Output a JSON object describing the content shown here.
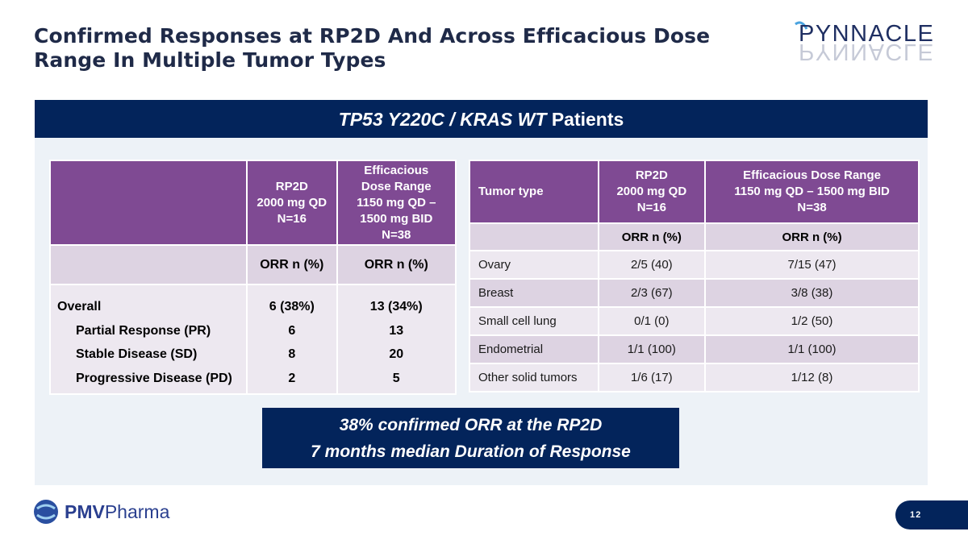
{
  "title": {
    "line1": "Confirmed Responses at RP2D And Across Efficacious Dose",
    "line2": "Range In Multiple Tumor Types"
  },
  "brand": {
    "name": "PYNNACLE"
  },
  "banner": {
    "italic": "TP53 Y220C / KRAS WT",
    "rest": " Patients"
  },
  "table_left": {
    "headers": {
      "rp2d": [
        "RP2D",
        "2000 mg QD",
        "N=16"
      ],
      "efficacious": [
        "Efficacious",
        "Dose Range",
        "1150 mg QD –",
        "1500 mg BID",
        "N=38"
      ]
    },
    "subheaders": [
      "ORR n (%)",
      "ORR n (%)"
    ],
    "rows": [
      {
        "label": "Overall",
        "rp2d": "6 (38%)",
        "eff": "13 (34%)"
      },
      {
        "label": "Partial Response (PR)",
        "rp2d": "6",
        "eff": "13"
      },
      {
        "label": "Stable Disease (SD)",
        "rp2d": "8",
        "eff": "20"
      },
      {
        "label": "Progressive Disease (PD)",
        "rp2d": "2",
        "eff": "5"
      }
    ]
  },
  "table_right": {
    "headers": {
      "tumor": "Tumor type",
      "rp2d": [
        "RP2D",
        "2000 mg QD",
        "N=16"
      ],
      "efficacious": [
        "Efficacious Dose Range",
        "1150 mg QD – 1500 mg BID",
        "N=38"
      ]
    },
    "subheaders": [
      "ORR n (%)",
      "ORR n (%)"
    ],
    "rows": [
      {
        "tumor": "Ovary",
        "rp2d": "2/5 (40)",
        "eff": "7/15 (47)"
      },
      {
        "tumor": "Breast",
        "rp2d": "2/3 (67)",
        "eff": "3/8 (38)"
      },
      {
        "tumor": "Small cell lung",
        "rp2d": "0/1 (0)",
        "eff": "1/2 (50)"
      },
      {
        "tumor": "Endometrial",
        "rp2d": "1/1 (100)",
        "eff": "1/1 (100)"
      },
      {
        "tumor": "Other solid tumors",
        "rp2d": "1/6 (17)",
        "eff": "1/12 (8)"
      }
    ]
  },
  "callout": {
    "line1": "38% confirmed ORR at the RP2D",
    "line2": "7 months median Duration of Response"
  },
  "footer": {
    "company_bold": "PMV",
    "company_rest": "Pharma",
    "page_number": "12"
  }
}
